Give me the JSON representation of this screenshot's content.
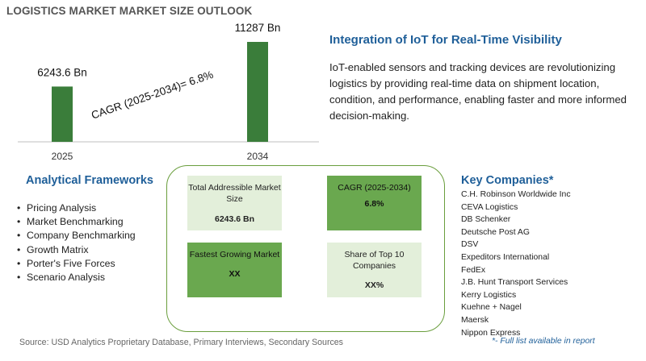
{
  "title": "LOGISTICS MARKET MARKET SIZE OUTLOOK",
  "chart_data": {
    "type": "bar",
    "categories": [
      "2025",
      "2034"
    ],
    "values": [
      6243.6,
      11287
    ],
    "value_labels": [
      "6243.6 Bn",
      "11287 Bn"
    ],
    "annotation": "CAGR (2025-2034)=   6.8%",
    "ylim": [
      0,
      11287
    ],
    "bar_color": "#3a7d3a",
    "grid": false,
    "legend": "none"
  },
  "iot": {
    "title": "Integration of IoT for Real-Time Visibility",
    "text": "IoT-enabled sensors and tracking devices are revolutionizing logistics by providing real-time data on shipment location, condition, and performance, enabling faster and more informed decision-making."
  },
  "frameworks": {
    "title": "Analytical Frameworks",
    "items": [
      "Pricing Analysis",
      "Market Benchmarking",
      "Company Benchmarking",
      "Growth Matrix",
      "Porter's Five Forces",
      "Scenario Analysis"
    ]
  },
  "metrics": {
    "tam": {
      "label": "Total Addressible Market Size",
      "value": "6243.6 Bn"
    },
    "cagr": {
      "label": "CAGR (2025-2034)",
      "value": "6.8%"
    },
    "fastest": {
      "label": "Fastest Growing Market",
      "value": "XX"
    },
    "share": {
      "label": "Share of Top 10 Companies",
      "value": "XX%"
    }
  },
  "companies": {
    "title": "Key Companies*",
    "items": [
      "C.H. Robinson Worldwide Inc",
      "CEVA Logistics",
      "DB Schenker",
      "Deutsche Post AG",
      "DSV",
      "Expeditors International",
      "FedEx",
      "J.B. Hunt Transport Services",
      "Kerry Logistics",
      "Kuehne + Nagel",
      "Maersk",
      "Nippon Express"
    ],
    "note": "*- Full list available in report"
  },
  "source": "Source: USD Analytics Proprietary Database, Primary Interviews, Secondary Sources"
}
